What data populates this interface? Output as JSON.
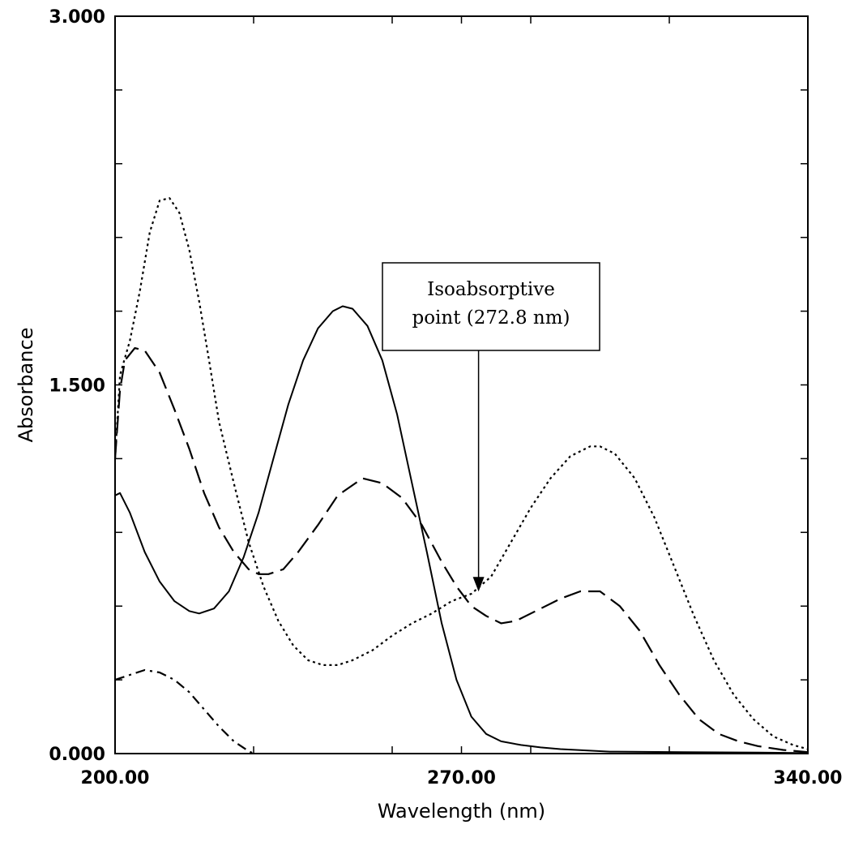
{
  "chart_data": {
    "type": "line",
    "title": "",
    "xlabel": "Wavelength (nm)",
    "ylabel": "Absorbance",
    "xlim": [
      200,
      340
    ],
    "ylim": [
      0,
      3
    ],
    "x_tick_labels": [
      "200.00",
      "270.00",
      "340.00"
    ],
    "y_tick_labels": [
      "0.000",
      "1.500",
      "3.000"
    ],
    "x_ticks": [
      200,
      228,
      256,
      270,
      284,
      312,
      340
    ],
    "y_ticks": [
      0,
      0.3,
      0.6,
      0.9,
      1.2,
      1.5,
      1.8,
      2.1,
      2.4,
      2.7,
      3.0
    ],
    "grid": false,
    "legend": "none",
    "annotation": {
      "line1": "Isoabsorptive",
      "line2": "point (272.8 nm)",
      "x": 272.8,
      "y": 0.6
    },
    "series": [
      {
        "style": "solid",
        "points": [
          [
            200,
            1.05
          ],
          [
            201,
            1.06
          ],
          [
            203,
            0.98
          ],
          [
            206,
            0.82
          ],
          [
            209,
            0.7
          ],
          [
            212,
            0.62
          ],
          [
            215,
            0.58
          ],
          [
            217,
            0.57
          ],
          [
            220,
            0.59
          ],
          [
            223,
            0.66
          ],
          [
            226,
            0.8
          ],
          [
            229,
            0.98
          ],
          [
            232,
            1.2
          ],
          [
            235,
            1.42
          ],
          [
            238,
            1.6
          ],
          [
            241,
            1.73
          ],
          [
            244,
            1.8
          ],
          [
            246,
            1.82
          ],
          [
            248,
            1.81
          ],
          [
            251,
            1.74
          ],
          [
            254,
            1.6
          ],
          [
            257,
            1.38
          ],
          [
            260,
            1.1
          ],
          [
            263,
            0.82
          ],
          [
            266,
            0.53
          ],
          [
            269,
            0.3
          ],
          [
            272,
            0.15
          ],
          [
            275,
            0.08
          ],
          [
            278,
            0.05
          ],
          [
            282,
            0.035
          ],
          [
            286,
            0.025
          ],
          [
            290,
            0.018
          ],
          [
            296,
            0.012
          ],
          [
            300,
            0.008
          ],
          [
            315,
            0.006
          ],
          [
            330,
            0.004
          ],
          [
            340,
            0.002
          ]
        ]
      },
      {
        "style": "dashed",
        "points": [
          [
            200,
            1.2
          ],
          [
            201,
            1.48
          ],
          [
            202,
            1.6
          ],
          [
            204,
            1.65
          ],
          [
            206,
            1.64
          ],
          [
            209,
            1.55
          ],
          [
            212,
            1.4
          ],
          [
            215,
            1.24
          ],
          [
            218,
            1.06
          ],
          [
            221,
            0.92
          ],
          [
            224,
            0.82
          ],
          [
            227,
            0.75
          ],
          [
            229,
            0.73
          ],
          [
            231,
            0.73
          ],
          [
            234,
            0.75
          ],
          [
            237,
            0.82
          ],
          [
            241,
            0.93
          ],
          [
            245,
            1.05
          ],
          [
            250,
            1.12
          ],
          [
            254,
            1.1
          ],
          [
            258,
            1.04
          ],
          [
            262,
            0.93
          ],
          [
            266,
            0.78
          ],
          [
            269,
            0.68
          ],
          [
            272,
            0.6
          ],
          [
            275,
            0.56
          ],
          [
            278,
            0.53
          ],
          [
            281,
            0.54
          ],
          [
            285,
            0.58
          ],
          [
            290,
            0.63
          ],
          [
            294,
            0.66
          ],
          [
            298,
            0.66
          ],
          [
            302,
            0.6
          ],
          [
            306,
            0.5
          ],
          [
            310,
            0.36
          ],
          [
            314,
            0.24
          ],
          [
            318,
            0.14
          ],
          [
            322,
            0.08
          ],
          [
            326,
            0.05
          ],
          [
            330,
            0.03
          ],
          [
            335,
            0.015
          ],
          [
            340,
            0.006
          ]
        ]
      },
      {
        "style": "dotted",
        "points": [
          [
            200,
            1.2
          ],
          [
            201,
            1.54
          ],
          [
            203,
            1.68
          ],
          [
            205,
            1.88
          ],
          [
            207,
            2.12
          ],
          [
            209,
            2.25
          ],
          [
            211,
            2.26
          ],
          [
            213,
            2.2
          ],
          [
            215,
            2.05
          ],
          [
            217,
            1.84
          ],
          [
            219,
            1.6
          ],
          [
            221,
            1.35
          ],
          [
            224,
            1.1
          ],
          [
            227,
            0.86
          ],
          [
            230,
            0.68
          ],
          [
            233,
            0.54
          ],
          [
            236,
            0.44
          ],
          [
            239,
            0.38
          ],
          [
            242,
            0.36
          ],
          [
            245,
            0.36
          ],
          [
            248,
            0.38
          ],
          [
            252,
            0.42
          ],
          [
            256,
            0.48
          ],
          [
            260,
            0.53
          ],
          [
            264,
            0.57
          ],
          [
            268,
            0.62
          ],
          [
            272,
            0.65
          ],
          [
            276,
            0.72
          ],
          [
            280,
            0.86
          ],
          [
            284,
            1.0
          ],
          [
            288,
            1.12
          ],
          [
            292,
            1.21
          ],
          [
            296,
            1.25
          ],
          [
            298,
            1.25
          ],
          [
            301,
            1.22
          ],
          [
            305,
            1.12
          ],
          [
            309,
            0.96
          ],
          [
            313,
            0.76
          ],
          [
            317,
            0.56
          ],
          [
            321,
            0.38
          ],
          [
            325,
            0.24
          ],
          [
            329,
            0.14
          ],
          [
            333,
            0.07
          ],
          [
            337,
            0.035
          ],
          [
            340,
            0.018
          ]
        ]
      },
      {
        "style": "dashdot",
        "points": [
          [
            200,
            0.3
          ],
          [
            203,
            0.32
          ],
          [
            206,
            0.34
          ],
          [
            209,
            0.33
          ],
          [
            212,
            0.3
          ],
          [
            215,
            0.25
          ],
          [
            218,
            0.18
          ],
          [
            221,
            0.11
          ],
          [
            224,
            0.05
          ],
          [
            227,
            0.01
          ],
          [
            228,
            0.0
          ]
        ]
      }
    ]
  }
}
